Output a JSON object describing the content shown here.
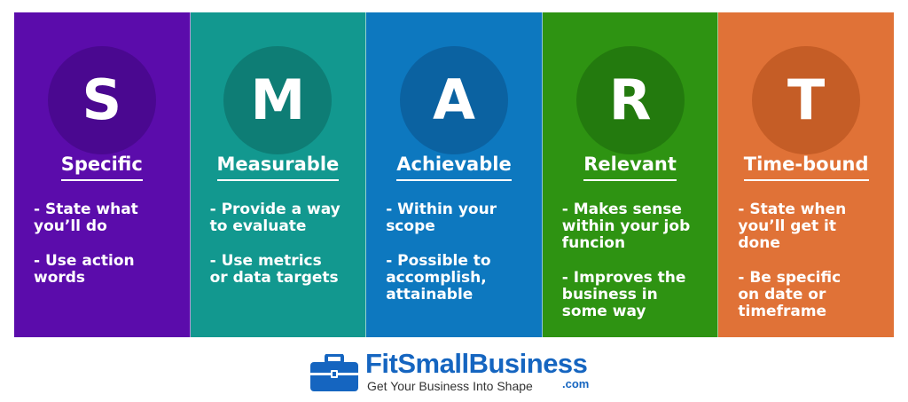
{
  "columns": [
    {
      "letter": "S",
      "title": "Specific",
      "points": [
        "- State what\nyou’ll do",
        "- Use action\nwords"
      ],
      "bg": "#5b0cab",
      "circle": "#4a0890"
    },
    {
      "letter": "M",
      "title": "Measurable",
      "points": [
        "- Provide a way\nto evaluate",
        "- Use metrics\nor data targets"
      ],
      "bg": "#12988f",
      "circle": "#0e7d75"
    },
    {
      "letter": "A",
      "title": "Achievable",
      "points": [
        "- Within your\nscope",
        "- Possible to\naccomplish,\nattainable"
      ],
      "bg": "#0d78bf",
      "circle": "#0b62a1"
    },
    {
      "letter": "R",
      "title": "Relevant",
      "points": [
        "- Makes sense\nwithin your job\nfuncion",
        "- Improves the\nbusiness in\nsome way"
      ],
      "bg": "#2e9312",
      "circle": "#237a0e"
    },
    {
      "letter": "T",
      "title": "Time-bound",
      "points": [
        "- State when\nyou’ll get it\ndone",
        "- Be specific\non date or\ntimeframe"
      ],
      "bg": "#e07237",
      "circle": "#c55d26"
    }
  ],
  "logo": {
    "brand": "FitSmallBusiness",
    "tagline": "Get Your Business Into Shape",
    "dotcom": ".com",
    "icon": "briefcase-icon",
    "brand_color": "#1565c0"
  }
}
